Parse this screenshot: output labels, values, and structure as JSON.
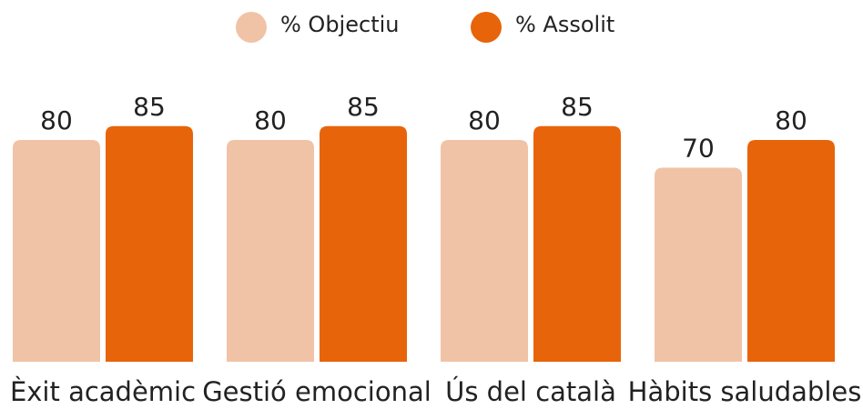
{
  "chart_data": {
    "type": "bar",
    "categories": [
      "Èxit acadèmic",
      "Gestió emocional",
      "Ús del català",
      "Hàbits saludables"
    ],
    "series": [
      {
        "name": "% Objectiu",
        "color": "#f0c3a6",
        "values": [
          80,
          80,
          80,
          70
        ]
      },
      {
        "name": "% Assolit",
        "color": "#e8640a",
        "values": [
          85,
          85,
          85,
          80
        ]
      }
    ],
    "ylim": [
      0,
      100
    ],
    "grid": false,
    "legend": "top"
  }
}
